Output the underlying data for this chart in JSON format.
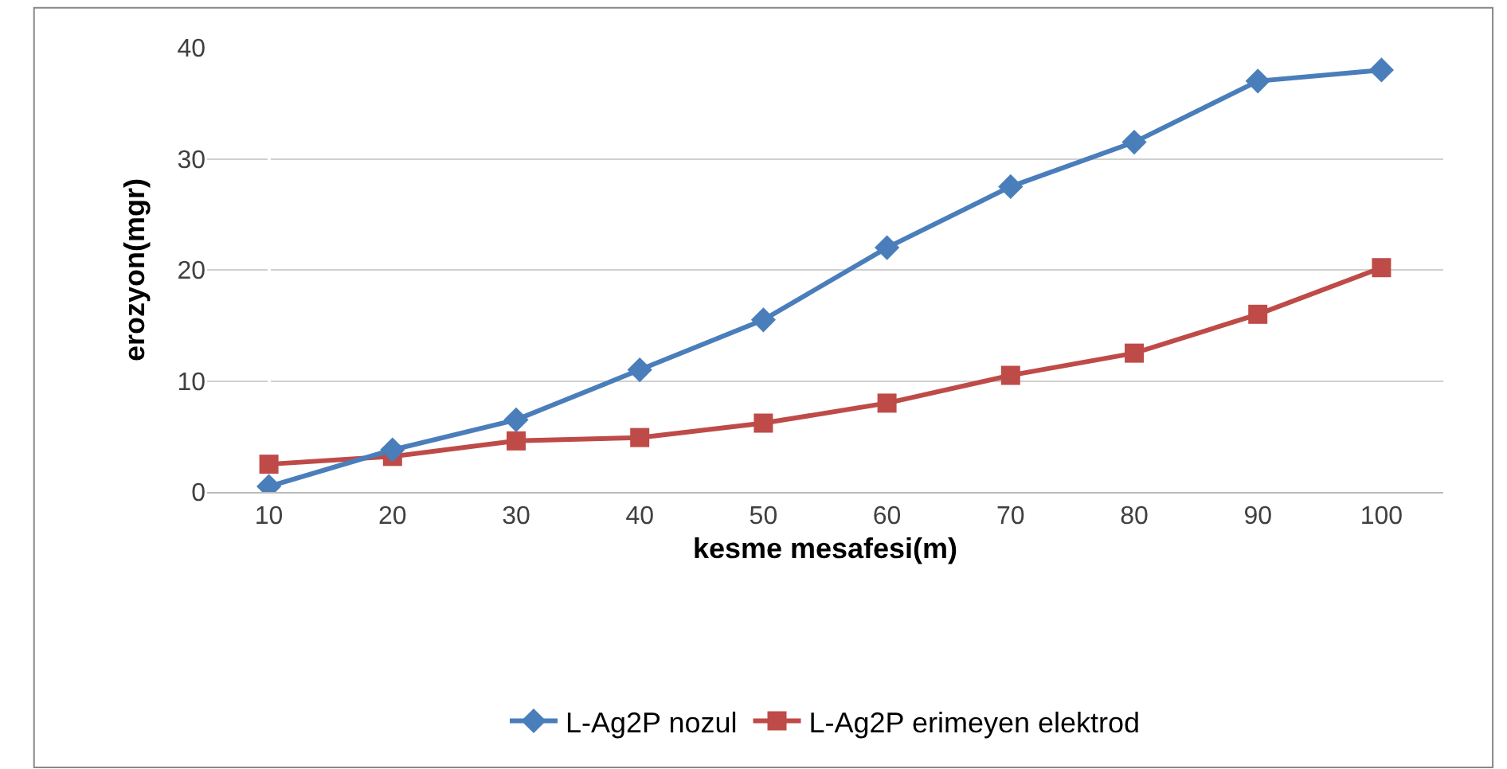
{
  "chart_data": {
    "type": "line",
    "xlabel": "kesme mesafesi(m)",
    "ylabel": "erozyon(mgr)",
    "categories": [
      "10",
      "20",
      "30",
      "40",
      "50",
      "60",
      "70",
      "80",
      "90",
      "100"
    ],
    "series": [
      {
        "name": "L-Ag2P nozul",
        "color": "#4a7ebb",
        "marker": "diamond",
        "values": [
          0.5,
          3.8,
          6.5,
          11,
          15.5,
          22,
          27.5,
          31.5,
          37,
          38
        ]
      },
      {
        "name": "L-Ag2P erimeyen elektrod",
        "color": "#be4b48",
        "marker": "square",
        "values": [
          2.5,
          3.2,
          4.6,
          4.9,
          6.2,
          8,
          10.5,
          12.5,
          16,
          20.2
        ]
      }
    ],
    "ylim": [
      0,
      40
    ],
    "yticks": [
      0,
      10,
      20,
      30,
      40
    ],
    "grid": "y",
    "legend": "bottom",
    "line_style": "solid"
  }
}
